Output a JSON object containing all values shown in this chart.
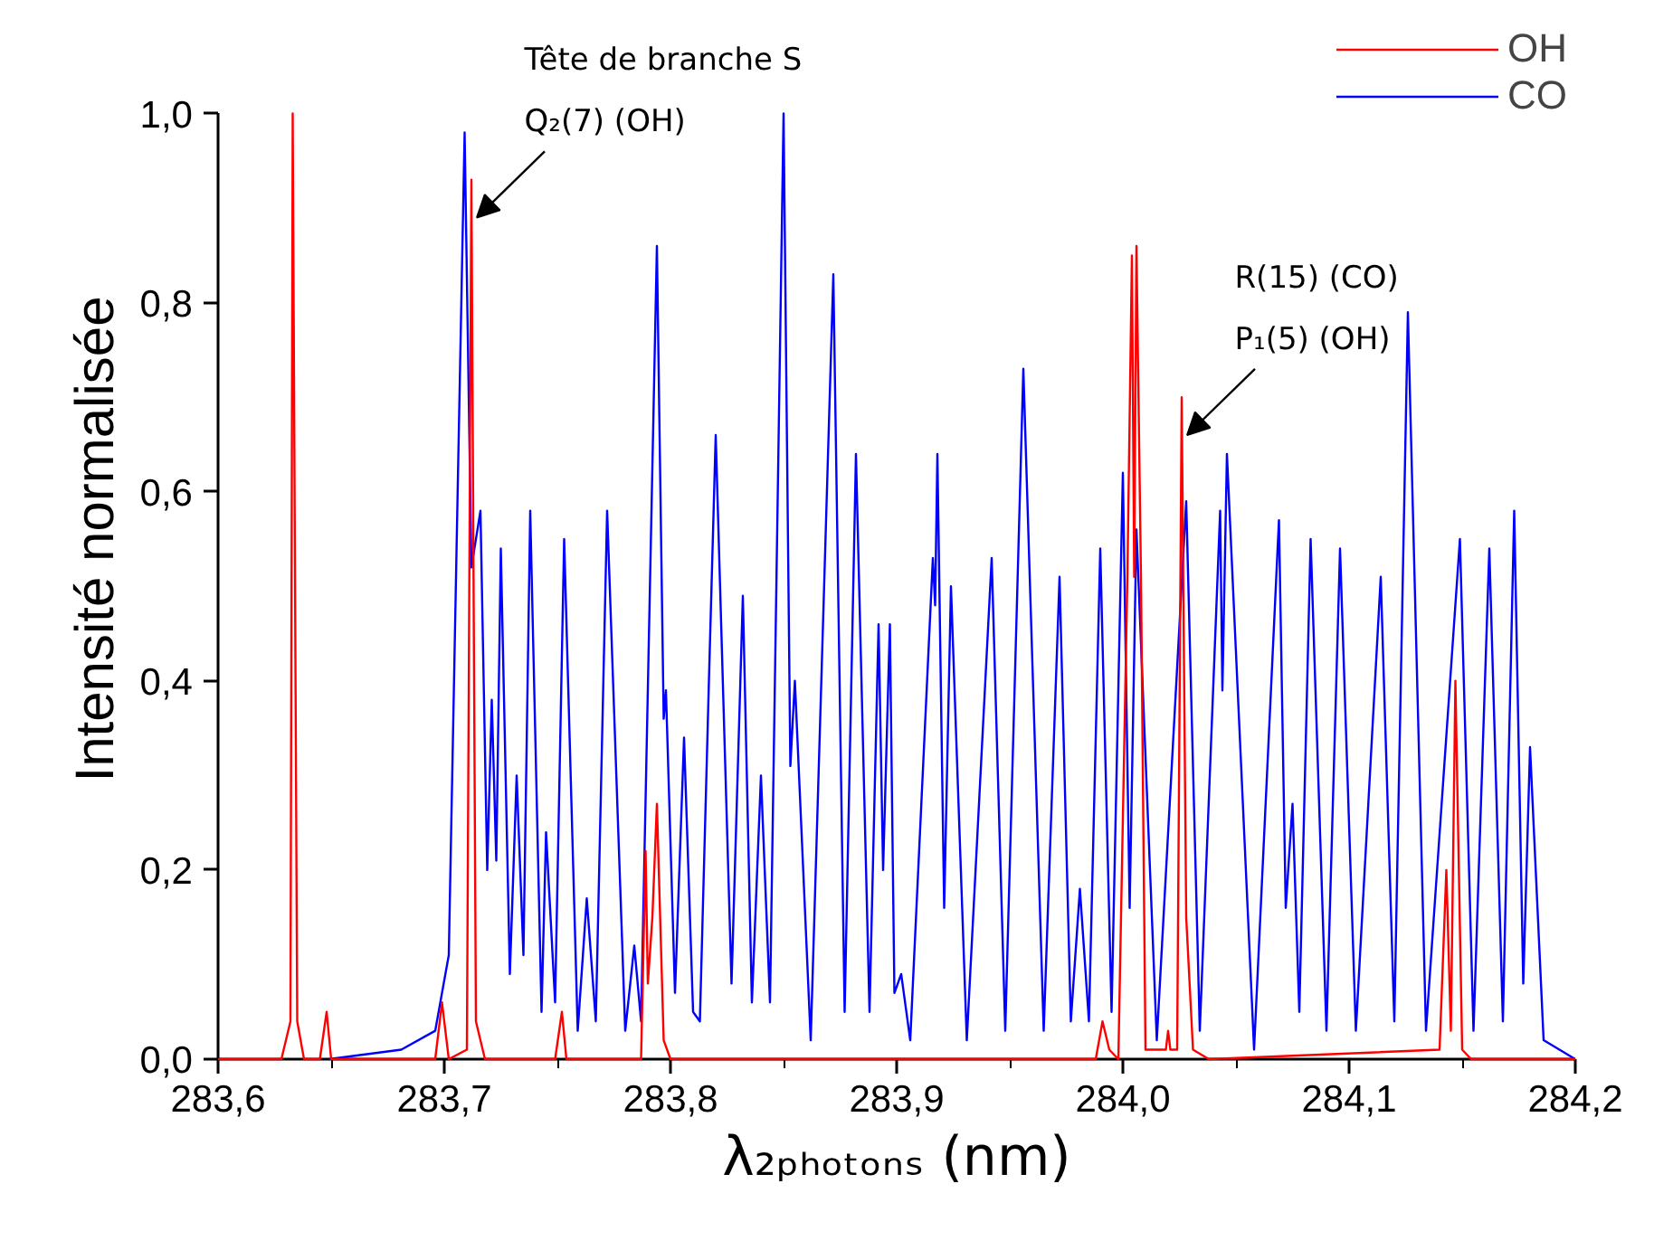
{
  "chart_data": {
    "type": "line",
    "xlabel": "λ₂ₚₕₒₜₒₙₛ (nm)",
    "ylabel": "Intensité normalisée",
    "xlim": [
      283.6,
      284.2
    ],
    "xticks": [
      {
        "value": 283.6,
        "label": "283,6"
      },
      {
        "value": 283.65,
        "label": null
      },
      {
        "value": 283.7,
        "label": "283,7"
      },
      {
        "value": 283.75,
        "label": null
      },
      {
        "value": 283.8,
        "label": "283,8"
      },
      {
        "value": 283.85,
        "label": null
      },
      {
        "value": 283.9,
        "label": "283,9"
      },
      {
        "value": 283.95,
        "label": null
      },
      {
        "value": 284.0,
        "label": "284,0"
      },
      {
        "value": 284.05,
        "label": null
      },
      {
        "value": 284.1,
        "label": "284,1"
      },
      {
        "value": 284.15,
        "label": null
      },
      {
        "value": 284.2,
        "label": "284,2"
      }
    ],
    "ylim": [
      0,
      1.0
    ],
    "yticks": [
      {
        "value": 0,
        "label": "0,0"
      },
      {
        "value": 0.2,
        "label": "0,2"
      },
      {
        "value": 0.4,
        "label": "0,4"
      },
      {
        "value": 0.6,
        "label": "0,6"
      },
      {
        "value": 0.8,
        "label": "0,8"
      },
      {
        "value": 1.0,
        "label": "1,0"
      }
    ],
    "grid": false,
    "legend": "top right",
    "marker": "none",
    "line_style": "solid",
    "annotations": [
      "Tête de branche S",
      {
        "text": "Q₂(7) (OH)",
        "x": 283.712,
        "y": 0.93
      },
      "R(15) (CO)",
      {
        "text": "P₁(5) (OH)",
        "x": 284.026,
        "y": 0.7
      }
    ],
    "series": [
      {
        "name": "OH",
        "color": "#ff0000",
        "x": [
          283.6,
          283.628,
          283.632,
          283.633,
          283.635,
          283.638,
          283.645,
          283.648,
          283.65,
          283.696,
          283.699,
          283.702,
          283.71,
          283.712,
          283.714,
          283.718,
          283.749,
          283.752,
          283.754,
          283.787,
          283.789,
          283.79,
          283.792,
          283.794,
          283.797,
          283.8,
          283.988,
          283.991,
          283.994,
          283.998,
          284.002,
          284.004,
          284.005,
          284.006,
          284.008,
          284.01,
          284.019,
          284.02,
          284.021,
          284.024,
          284.026,
          284.028,
          284.031,
          284.038,
          284.14,
          284.143,
          284.145,
          284.147,
          284.15,
          284.154,
          284.2
        ],
        "values": [
          0,
          0,
          0.04,
          1.0,
          0.04,
          0,
          0,
          0.05,
          0,
          0,
          0.06,
          0,
          0.01,
          0.93,
          0.04,
          0,
          0,
          0.05,
          0,
          0,
          0.22,
          0.08,
          0.15,
          0.27,
          0.02,
          0,
          0,
          0.04,
          0.01,
          0,
          0.51,
          0.85,
          0.51,
          0.86,
          0.51,
          0.01,
          0.01,
          0.03,
          0.01,
          0.01,
          0.7,
          0.15,
          0.01,
          0,
          0.01,
          0.2,
          0.03,
          0.4,
          0.01,
          0,
          0
        ]
      },
      {
        "name": "CO",
        "color": "#0000ff",
        "x": [
          283.649,
          283.681,
          283.696,
          283.702,
          283.706,
          283.709,
          283.712,
          283.716,
          283.719,
          283.721,
          283.723,
          283.725,
          283.729,
          283.732,
          283.735,
          283.738,
          283.743,
          283.745,
          283.749,
          283.753,
          283.759,
          283.763,
          283.767,
          283.772,
          283.78,
          283.784,
          283.787,
          283.794,
          283.797,
          283.798,
          283.802,
          283.806,
          283.81,
          283.813,
          283.817,
          283.82,
          283.827,
          283.832,
          283.836,
          283.84,
          283.844,
          283.85,
          283.853,
          283.855,
          283.862,
          283.872,
          283.877,
          283.882,
          283.888,
          283.892,
          283.894,
          283.897,
          283.899,
          283.902,
          283.906,
          283.916,
          283.917,
          283.918,
          283.921,
          283.924,
          283.931,
          283.942,
          283.948,
          283.956,
          283.965,
          283.972,
          283.977,
          283.981,
          283.985,
          283.99,
          283.995,
          284.0,
          284.003,
          284.006,
          284.015,
          284.028,
          284.034,
          284.043,
          284.044,
          284.046,
          284.058,
          284.069,
          284.072,
          284.075,
          284.078,
          284.083,
          284.09,
          284.096,
          284.103,
          284.114,
          284.12,
          284.126,
          284.134,
          284.149,
          284.155,
          284.162,
          284.168,
          284.173,
          284.177,
          284.18,
          284.186,
          284.193,
          284.2
        ],
        "values": [
          0,
          0.01,
          0.03,
          0.11,
          0.61,
          0.98,
          0.52,
          0.58,
          0.2,
          0.38,
          0.21,
          0.54,
          0.09,
          0.3,
          0.11,
          0.58,
          0.05,
          0.24,
          0.06,
          0.55,
          0.03,
          0.17,
          0.04,
          0.58,
          0.03,
          0.12,
          0.04,
          0.86,
          0.36,
          0.39,
          0.07,
          0.34,
          0.05,
          0.04,
          0.4,
          0.66,
          0.08,
          0.49,
          0.06,
          0.3,
          0.06,
          1.0,
          0.31,
          0.4,
          0.02,
          0.83,
          0.05,
          0.64,
          0.05,
          0.46,
          0.2,
          0.46,
          0.07,
          0.09,
          0.02,
          0.53,
          0.48,
          0.64,
          0.16,
          0.5,
          0.02,
          0.53,
          0.03,
          0.73,
          0.03,
          0.51,
          0.04,
          0.18,
          0.04,
          0.54,
          0.05,
          0.62,
          0.16,
          0.56,
          0.02,
          0.59,
          0.03,
          0.58,
          0.39,
          0.64,
          0.01,
          0.57,
          0.16,
          0.27,
          0.05,
          0.55,
          0.03,
          0.54,
          0.03,
          0.51,
          0.04,
          0.79,
          0.03,
          0.55,
          0.03,
          0.54,
          0.04,
          0.58,
          0.08,
          0.33,
          0.02,
          0.01,
          0
        ]
      }
    ]
  }
}
